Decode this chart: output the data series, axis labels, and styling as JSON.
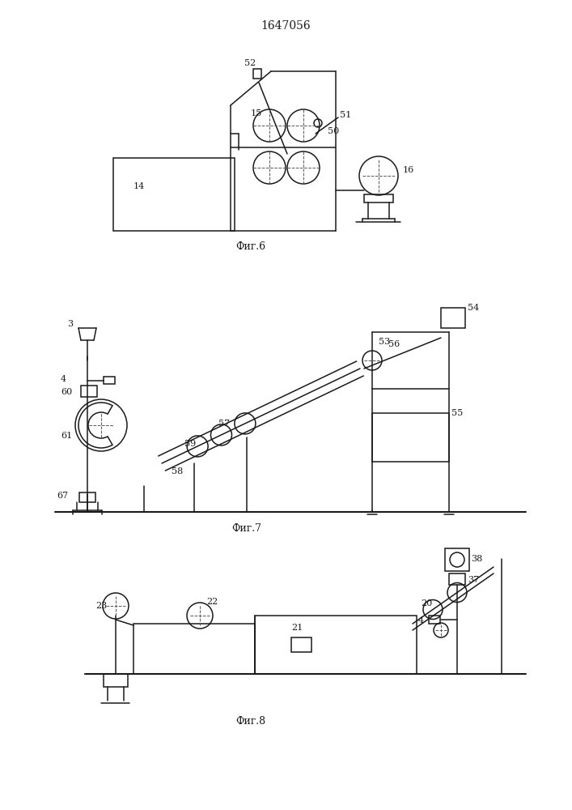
{
  "title": "1647056",
  "fig6_label": "Фиг.6",
  "fig7_label": "Фиг.7",
  "fig8_label": "Фиг.8",
  "bg_color": "#ffffff",
  "line_color": "#1a1a1a",
  "linewidth": 1.1
}
